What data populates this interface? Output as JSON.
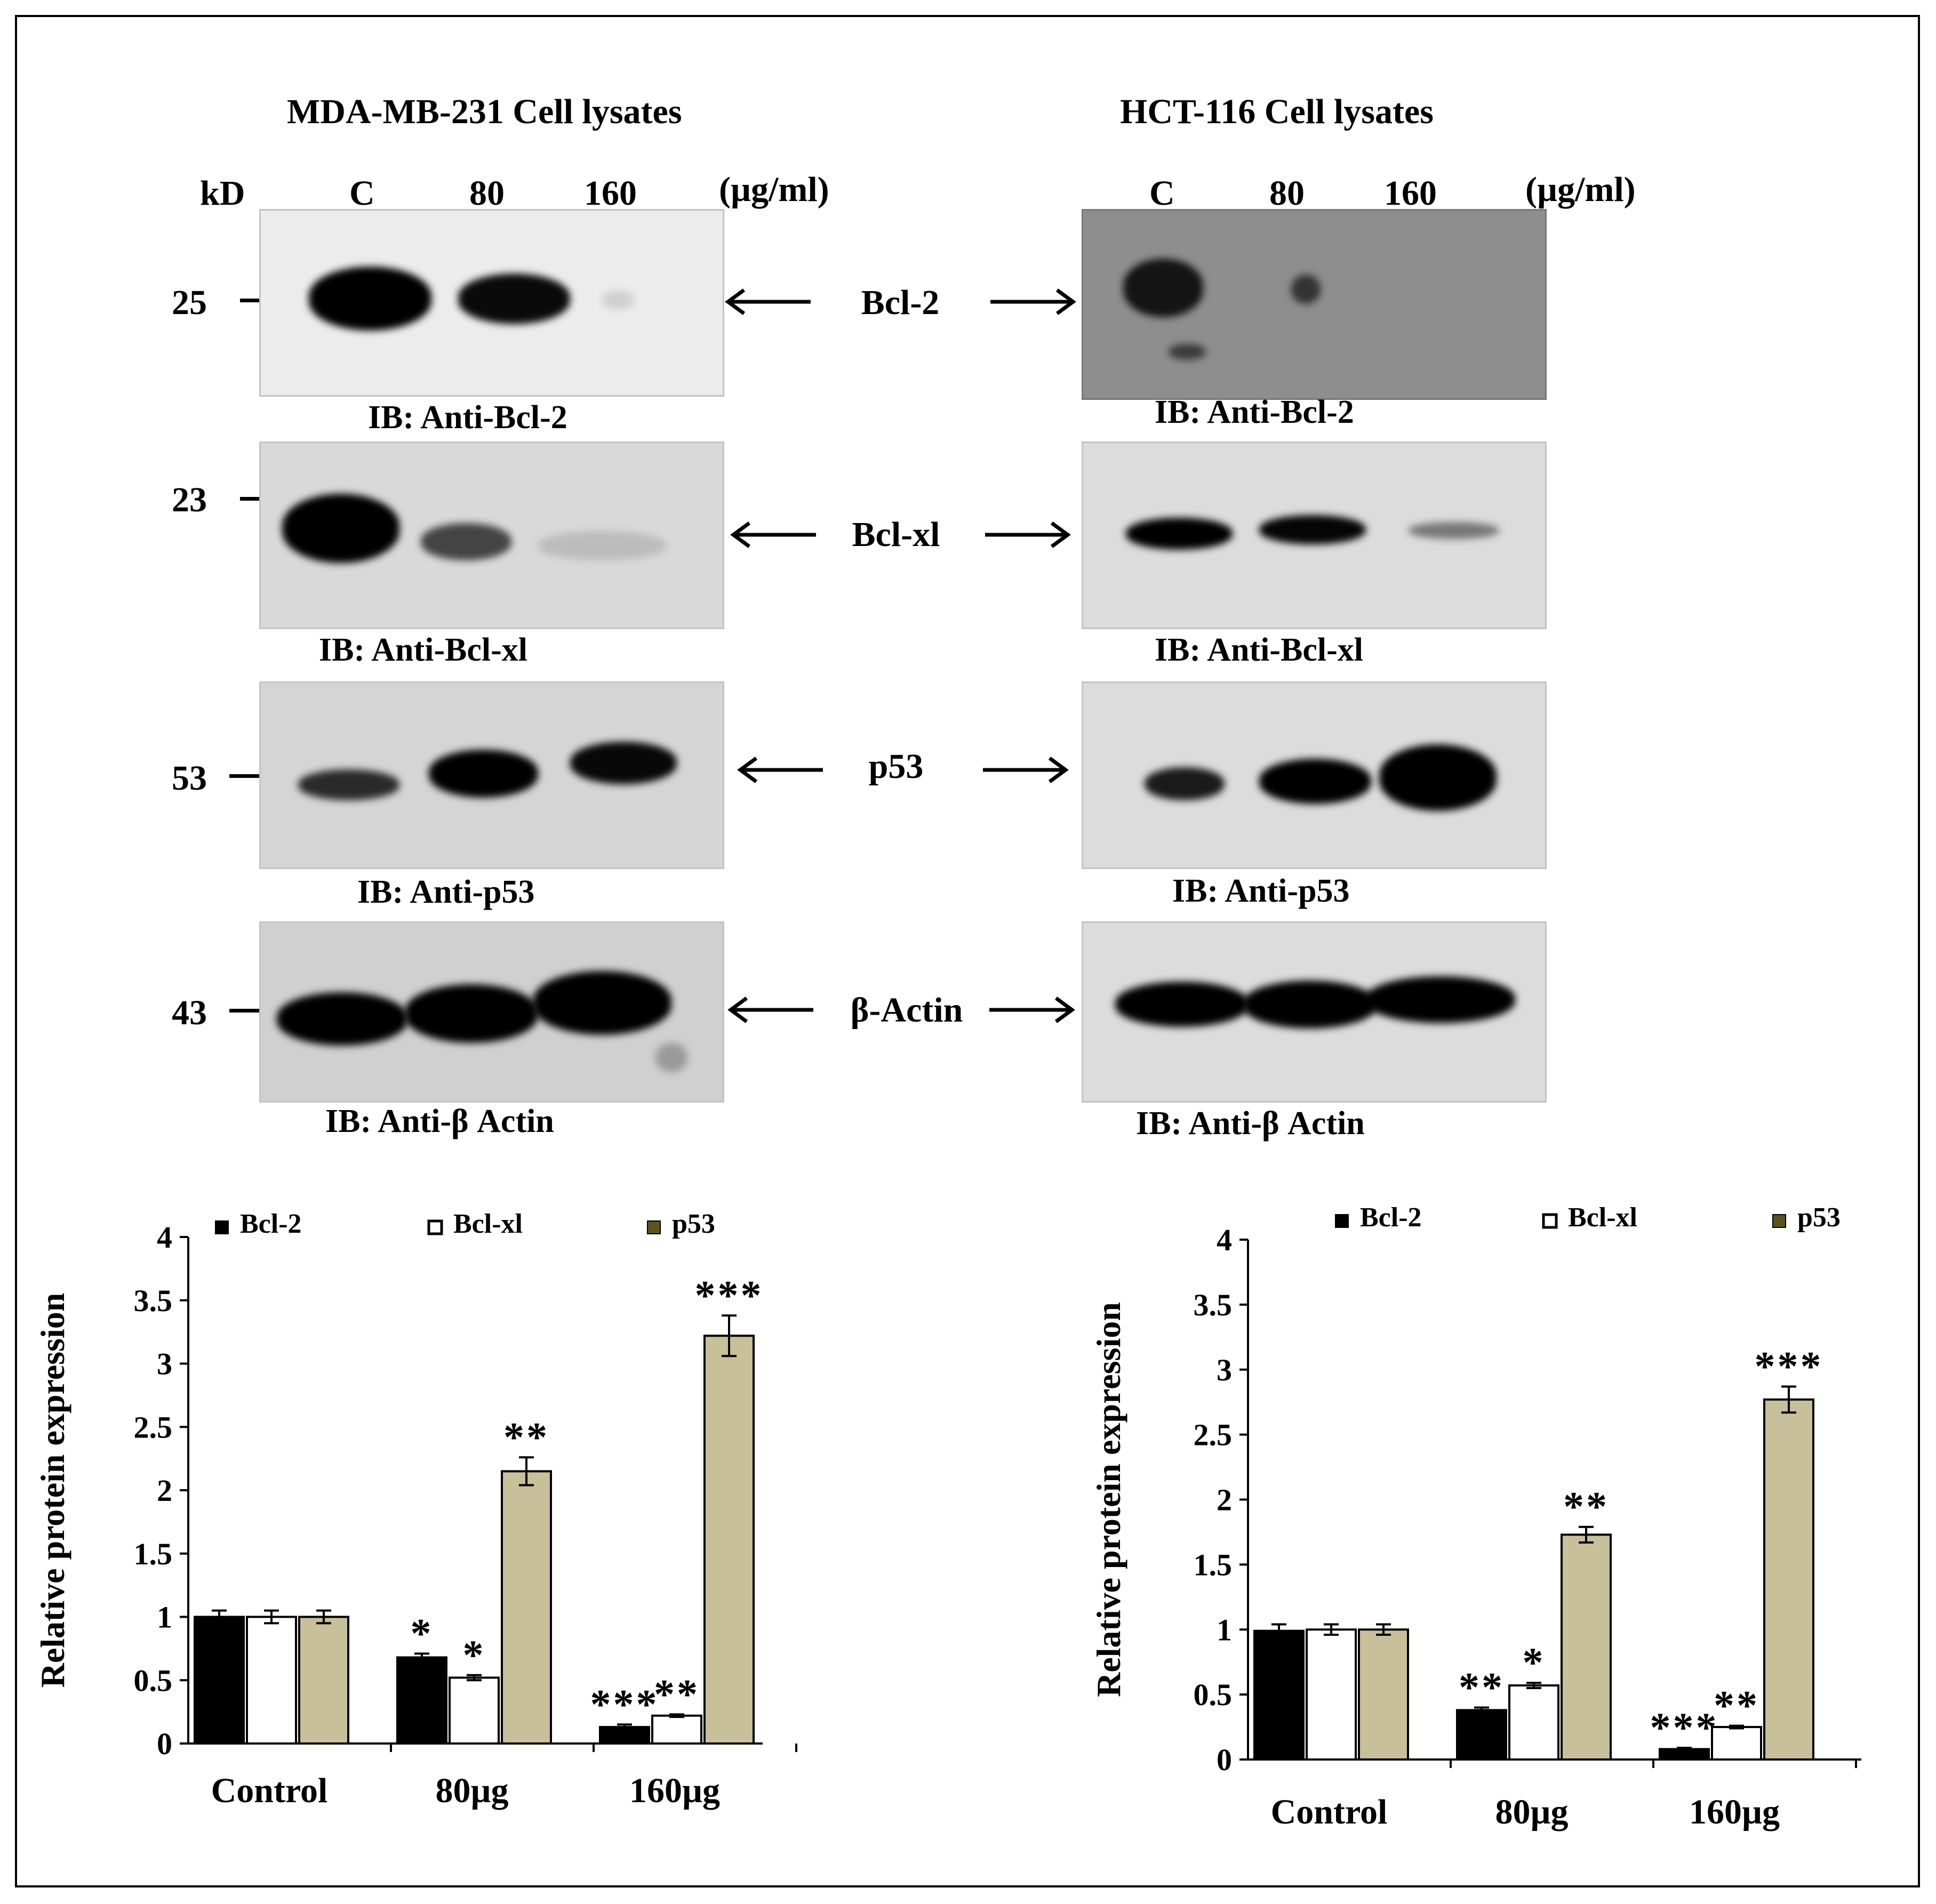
{
  "panels": {
    "left": {
      "title": "MDA-MB-231 Cell lysates",
      "kd_label": "kD",
      "lanes": [
        "C",
        "80",
        "160"
      ],
      "unit": "(µg/ml)",
      "markers": [
        "25",
        "23",
        "53",
        "43"
      ],
      "ib_labels": [
        "IB: Anti-Bcl-2",
        "IB: Anti-Bcl-xl",
        "IB: Anti-p53",
        "IB: Anti-β Actin"
      ]
    },
    "right": {
      "title": "HCT-116 Cell lysates",
      "lanes": [
        "C",
        "80",
        "160"
      ],
      "unit": "(µg/ml)",
      "ib_labels": [
        "IB: Anti-Bcl-2",
        "IB: Anti-Bcl-xl",
        "IB: Anti-p53",
        "IB: Anti-β Actin"
      ]
    }
  },
  "proteins": [
    "Bcl-2",
    "Bcl-xl",
    "p53",
    "β-Actin"
  ],
  "colors": {
    "bcl2": "#000000",
    "bclxl": "#ffffff",
    "p53": "#c8bf9b",
    "p53_legend": "#5a5320"
  },
  "chart_data": [
    {
      "type": "bar",
      "title": "",
      "xlabel": "",
      "ylabel": "Relative protein expression",
      "ylim": [
        0,
        4
      ],
      "yticks": [
        "0",
        "0.5",
        "1",
        "1.5",
        "2",
        "2.5",
        "3",
        "3.5",
        "4"
      ],
      "categories": [
        "Control",
        "80µg",
        "160µg"
      ],
      "legend_position": "top",
      "series": [
        {
          "name": "Bcl-2",
          "values": [
            1.0,
            0.68,
            0.13
          ],
          "errors": [
            0.05,
            0.03,
            0.02
          ],
          "significance": [
            "",
            "*",
            "***"
          ]
        },
        {
          "name": "Bcl-xl",
          "values": [
            1.0,
            0.52,
            0.22
          ],
          "errors": [
            0.05,
            0.02,
            0.01
          ],
          "significance": [
            "",
            "*",
            "**"
          ]
        },
        {
          "name": "p53",
          "values": [
            1.0,
            2.15,
            3.22
          ],
          "errors": [
            0.05,
            0.11,
            0.16
          ],
          "significance": [
            "",
            "**",
            "***"
          ]
        }
      ]
    },
    {
      "type": "bar",
      "title": "",
      "xlabel": "",
      "ylabel": "Relative protein expression",
      "ylim": [
        0,
        4
      ],
      "yticks": [
        "0",
        "0.5",
        "1",
        "1.5",
        "2",
        "2.5",
        "3",
        "3.5",
        "4"
      ],
      "categories": [
        "Control",
        "80µg",
        "160µg"
      ],
      "legend_position": "top",
      "series": [
        {
          "name": "Bcl-2",
          "values": [
            0.99,
            0.38,
            0.08
          ],
          "errors": [
            0.05,
            0.02,
            0.01
          ],
          "significance": [
            "",
            "**",
            "***"
          ]
        },
        {
          "name": "Bcl-xl",
          "values": [
            1.0,
            0.57,
            0.25
          ],
          "errors": [
            0.04,
            0.02,
            0.01
          ],
          "significance": [
            "",
            "*",
            "**"
          ]
        },
        {
          "name": "p53",
          "values": [
            1.0,
            1.73,
            2.77
          ],
          "errors": [
            0.04,
            0.06,
            0.1
          ],
          "significance": [
            "",
            "**",
            "***"
          ]
        }
      ]
    }
  ]
}
